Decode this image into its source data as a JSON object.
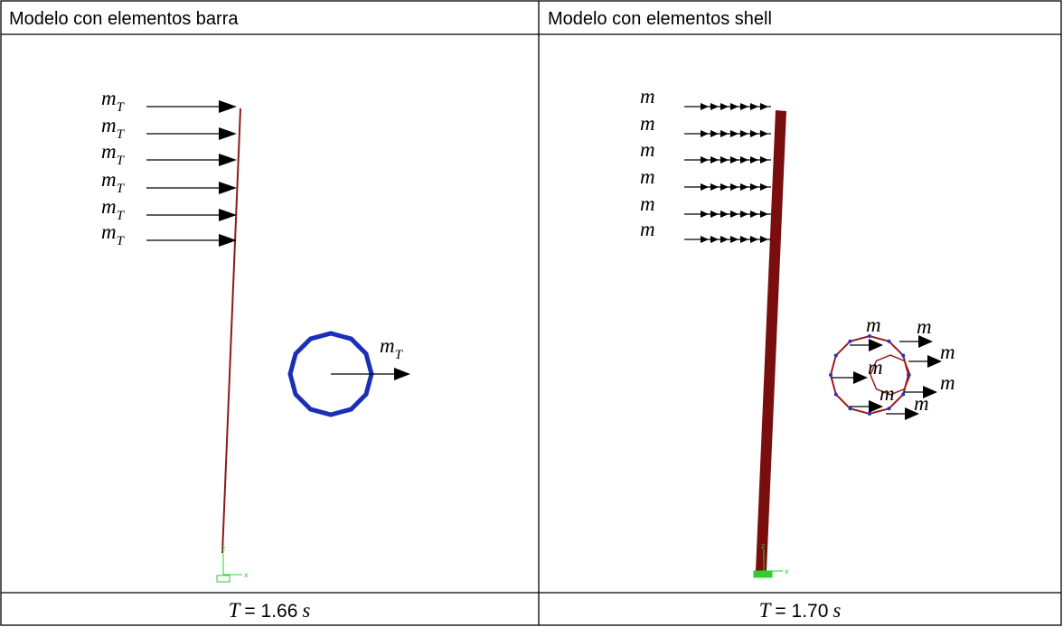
{
  "table": {
    "headers": [
      "Modelo con elementos barra",
      "Modelo con elementos shell"
    ],
    "left": {
      "arrow_labels": [
        {
          "base": "m",
          "sub": "T"
        },
        {
          "base": "m",
          "sub": "T"
        },
        {
          "base": "m",
          "sub": "T"
        },
        {
          "base": "m",
          "sub": "T"
        },
        {
          "base": "m",
          "sub": "T"
        },
        {
          "base": "m",
          "sub": "T"
        }
      ],
      "circle_label": {
        "base": "m",
        "sub": "T"
      },
      "axes": [
        "z",
        "x"
      ]
    },
    "right": {
      "arrow_labels": [
        "m",
        "m",
        "m",
        "m",
        "m",
        "m"
      ],
      "circle_labels": [
        "m",
        "m",
        "m",
        "m",
        "m",
        "m",
        "m"
      ],
      "axes": [
        "z",
        "x"
      ]
    },
    "footer": [
      {
        "symbol": "T",
        "text": "= 1.66",
        "unit": "s"
      },
      {
        "symbol": "T",
        "text": "= 1.70",
        "unit": "s"
      }
    ]
  }
}
